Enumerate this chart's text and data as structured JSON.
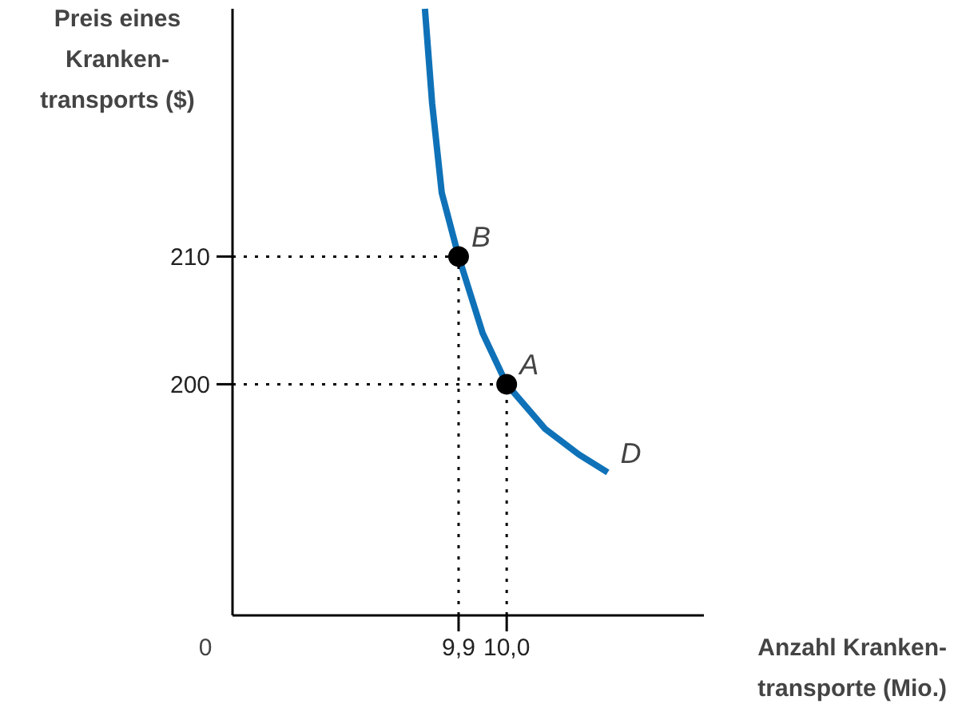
{
  "chart_data": {
    "type": "line",
    "xlabel": "Anzahl Kranken-\ntransporte (Mio.)",
    "ylabel": "Preis eines\nKranken-\ntransports ($)",
    "xlim": [
      9.43,
      10.41
    ],
    "ylim": [
      181.9,
      229.4
    ],
    "xticks": [
      {
        "value": 9.9,
        "label": "9,9"
      },
      {
        "value": 10.0,
        "label": "10,0"
      }
    ],
    "yticks": [
      200,
      210
    ],
    "series": [
      {
        "type": "line",
        "color": "#0f72b8",
        "marker": "none",
        "line_style": "solid",
        "x": [
          9.83,
          9.845,
          9.865,
          9.9,
          9.95,
          10.0,
          10.08,
          10.15,
          10.21
        ],
        "values": [
          229.4,
          222,
          215,
          210,
          204,
          200,
          196.5,
          194.5,
          193.1
        ]
      },
      {
        "type": "line",
        "color": "#000000",
        "marker": "none",
        "line_style": "dotted",
        "x": [
          9.43,
          9.9
        ],
        "values": [
          210,
          210
        ]
      },
      {
        "type": "line",
        "color": "#000000",
        "marker": "none",
        "line_style": "dotted",
        "x": [
          9.9,
          9.9
        ],
        "values": [
          181.9,
          210
        ]
      },
      {
        "type": "line",
        "color": "#000000",
        "marker": "none",
        "line_style": "dotted",
        "x": [
          9.43,
          10.0
        ],
        "values": [
          200,
          200
        ]
      },
      {
        "type": "line",
        "color": "#000000",
        "marker": "none",
        "line_style": "dotted",
        "x": [
          10.0,
          10.0
        ],
        "values": [
          181.9,
          200
        ]
      },
      {
        "type": "scatter",
        "color": "#000000",
        "marker": "circle",
        "x": [
          9.9,
          10.0
        ],
        "values": [
          210,
          200
        ]
      }
    ],
    "annotations": [
      {
        "text": "B",
        "x": 9.9,
        "y": 210
      },
      {
        "text": "A",
        "x": 10.0,
        "y": 200
      },
      {
        "text": "D",
        "x": 10.21,
        "y": 193.1
      },
      "0"
    ]
  }
}
